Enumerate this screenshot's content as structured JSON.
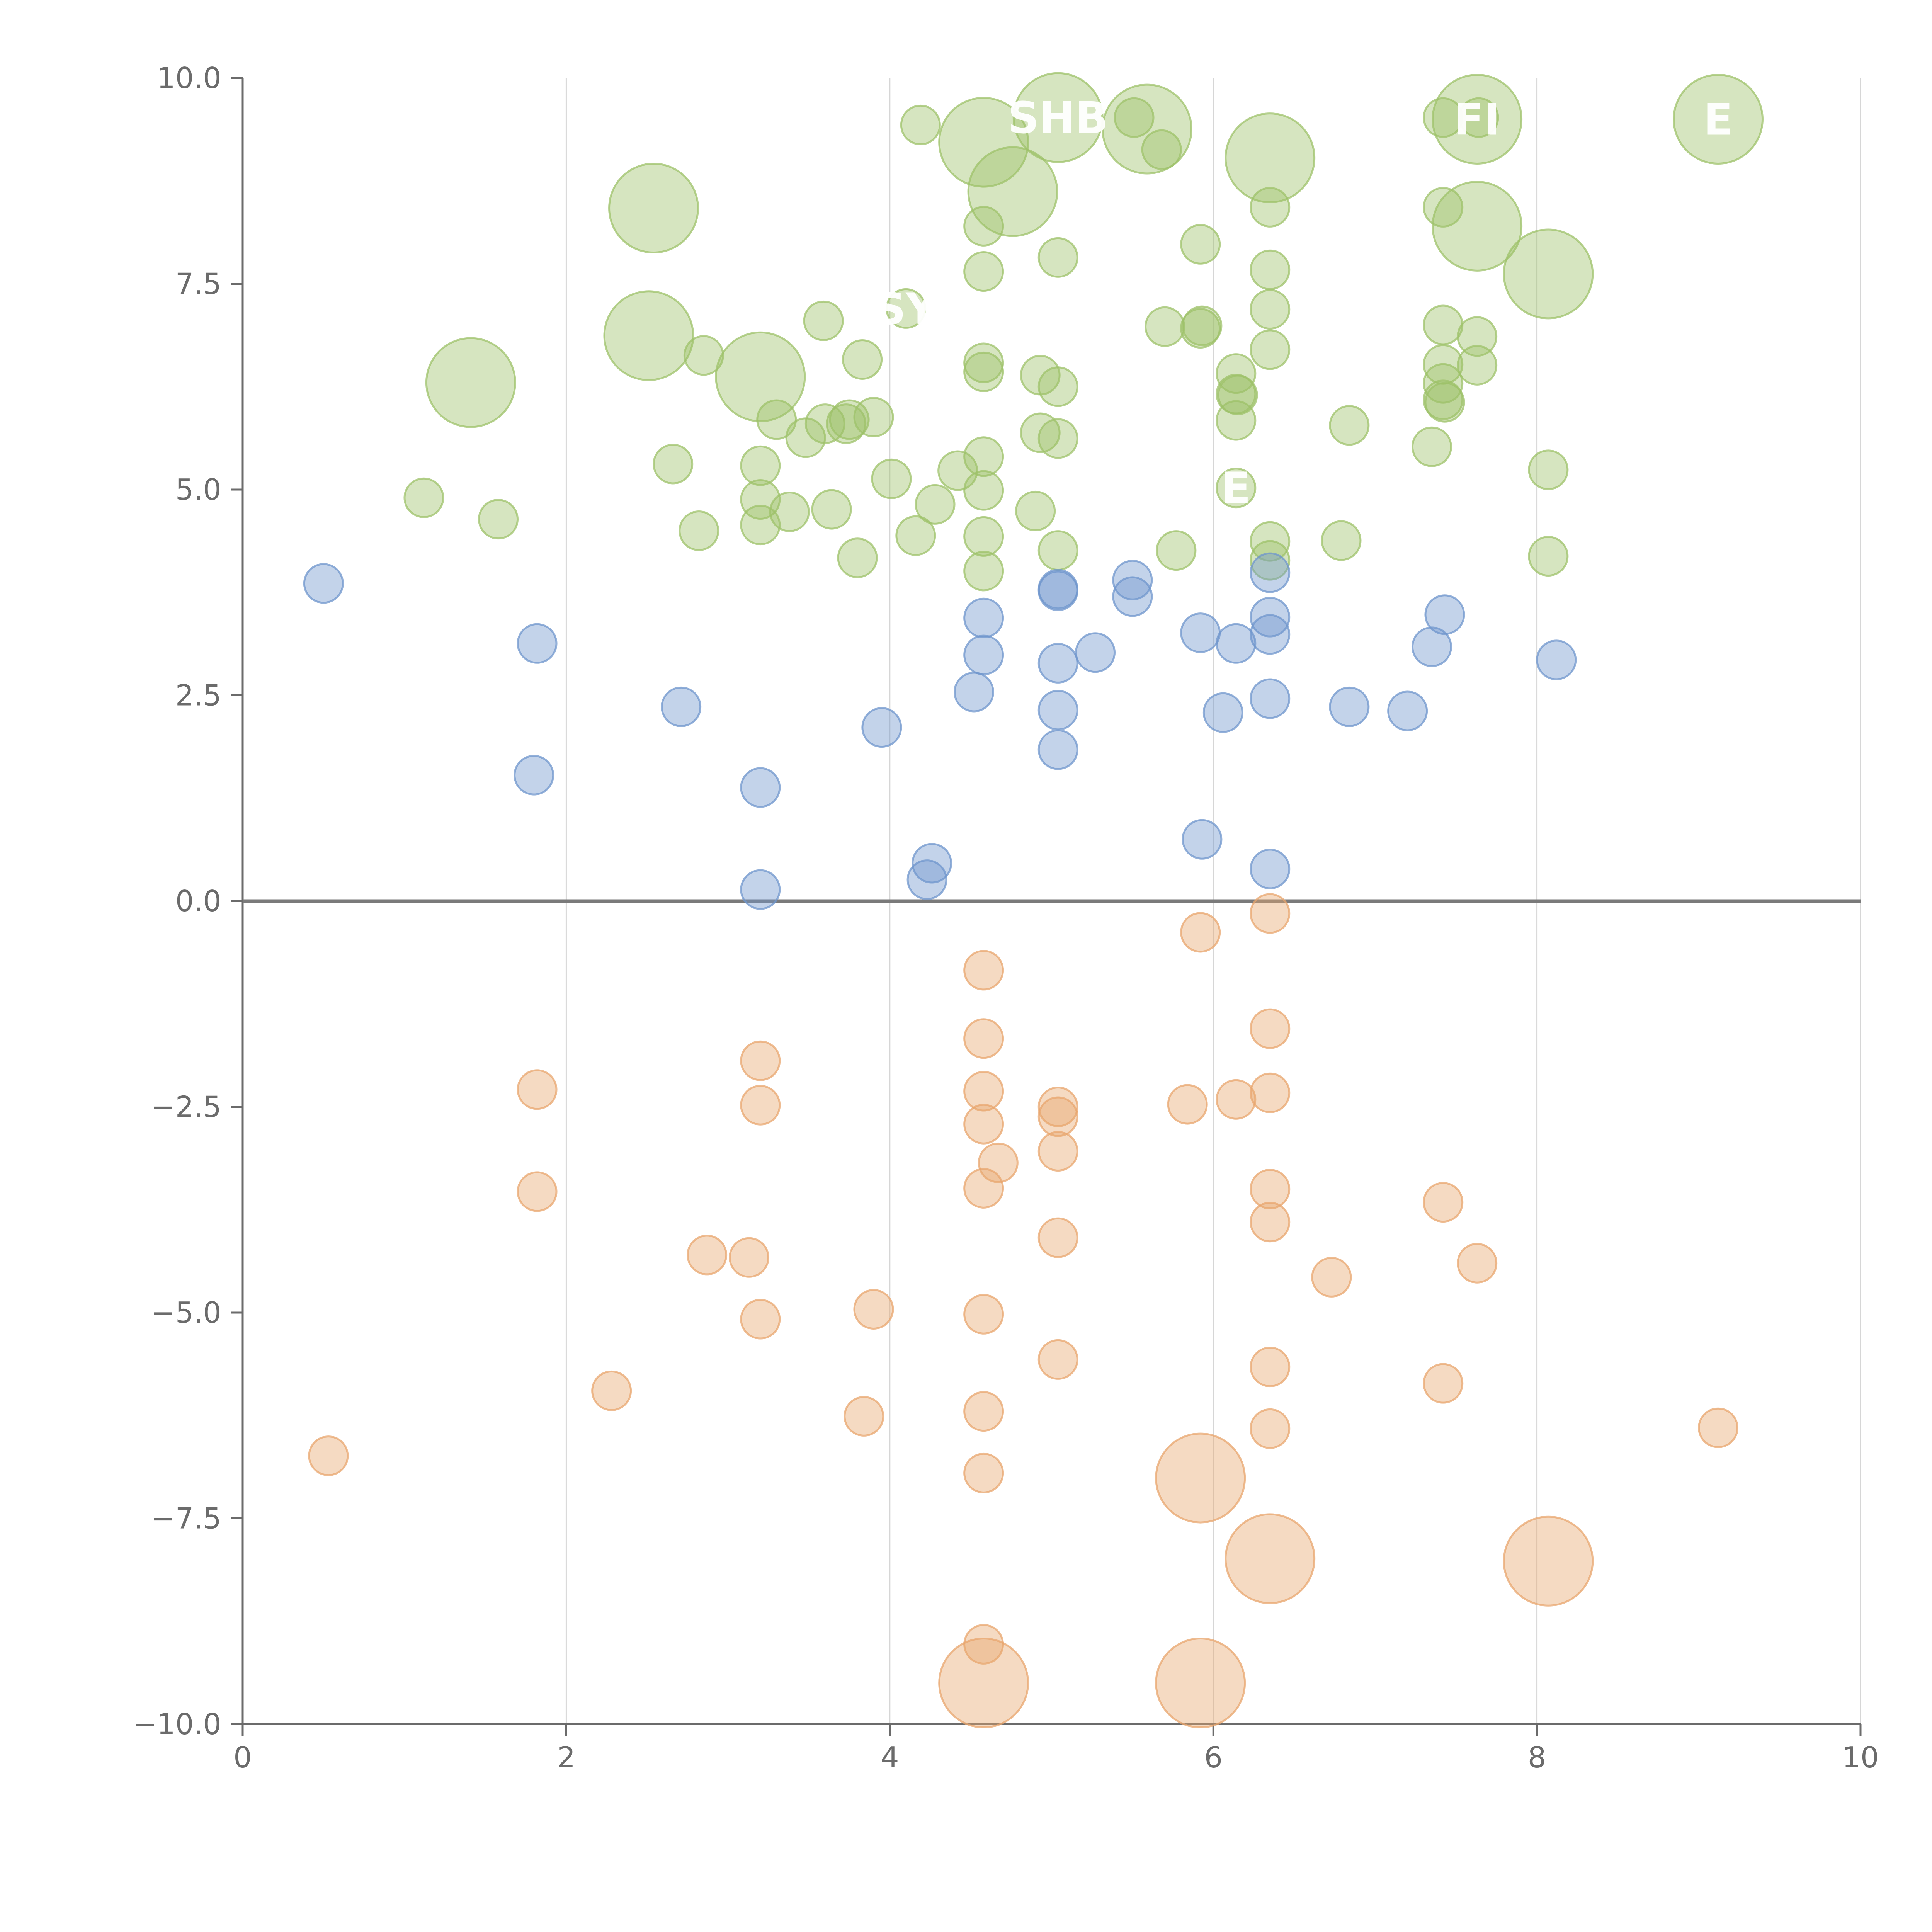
{
  "chart_data": {
    "type": "scatter",
    "title": "",
    "xlabel": "",
    "ylabel": "",
    "xlim": [
      0,
      10
    ],
    "ylim": [
      -10,
      10
    ],
    "x_ticks": [
      0,
      2,
      4,
      6,
      8,
      10
    ],
    "x_tick_labels": [
      "0",
      "2",
      "4",
      "6",
      "8",
      "10"
    ],
    "y_ticks": [
      10,
      7.5,
      5,
      2.5,
      0,
      -2.5,
      -5,
      -7.5,
      -10
    ],
    "y_tick_labels": [
      "10.0",
      "7.5",
      "5.0",
      "2.5",
      "0.0",
      "−2.5",
      "−5.0",
      "−7.5",
      "−10.0"
    ],
    "vertical_grid": true,
    "zero_line": true,
    "series": [
      {
        "name": "green",
        "color": "#9dc16a",
        "points": [
          [
            1.12,
            4.9,
            1
          ],
          [
            1.58,
            4.64,
            1
          ],
          [
            1.41,
            6.3,
            2.2
          ],
          [
            2.51,
            6.87,
            2.2
          ],
          [
            2.54,
            8.42,
            2.2
          ],
          [
            2.66,
            5.31,
            1
          ],
          [
            2.82,
            4.5,
            1
          ],
          [
            2.85,
            6.63,
            1
          ],
          [
            3.2,
            6.37,
            2.2
          ],
          [
            3.2,
            5.29,
            1
          ],
          [
            3.2,
            4.88,
            1
          ],
          [
            3.2,
            4.57,
            1
          ],
          [
            3.3,
            5.85,
            1
          ],
          [
            3.38,
            4.73,
            1
          ],
          [
            3.48,
            5.63,
            1
          ],
          [
            3.6,
            5.8,
            1
          ],
          [
            3.59,
            7.05,
            1
          ],
          [
            3.64,
            4.76,
            1
          ],
          [
            3.73,
            5.8,
            1
          ],
          [
            3.75,
            5.85,
            1
          ],
          [
            3.8,
            4.17,
            1
          ],
          [
            3.83,
            6.58,
            1
          ],
          [
            3.9,
            5.88,
            1
          ],
          [
            4.01,
            5.13,
            1
          ],
          [
            4.1,
            7.2,
            1
          ],
          [
            4.16,
            4.44,
            1
          ],
          [
            4.19,
            9.43,
            1
          ],
          [
            4.28,
            4.82,
            1
          ],
          [
            4.42,
            5.23,
            1
          ],
          [
            4.58,
            9.22,
            2.2
          ],
          [
            4.58,
            8.2,
            1
          ],
          [
            4.58,
            7.65,
            1
          ],
          [
            4.58,
            6.54,
            1
          ],
          [
            4.58,
            6.43,
            1
          ],
          [
            4.58,
            5.4,
            1
          ],
          [
            4.58,
            4.99,
            1
          ],
          [
            4.58,
            4.43,
            1
          ],
          [
            4.58,
            4.01,
            1
          ],
          [
            4.76,
            8.62,
            2.2
          ],
          [
            4.9,
            4.74,
            1
          ],
          [
            4.93,
            6.39,
            1
          ],
          [
            4.93,
            5.69,
            1
          ],
          [
            5.04,
            9.52,
            2.2
          ],
          [
            5.04,
            7.82,
            1
          ],
          [
            5.04,
            6.25,
            1
          ],
          [
            5.04,
            5.62,
            1
          ],
          [
            5.04,
            4.26,
            1
          ],
          [
            5.51,
            9.52,
            1
          ],
          [
            5.59,
            9.38,
            2.2
          ],
          [
            5.68,
            9.13,
            1
          ],
          [
            5.7,
            6.98,
            1
          ],
          [
            5.77,
            4.26,
            1
          ],
          [
            5.92,
            7.98,
            1
          ],
          [
            5.92,
            6.96,
            1
          ],
          [
            5.93,
            6.99,
            1
          ],
          [
            6.14,
            6.41,
            1
          ],
          [
            6.14,
            6.16,
            1
          ],
          [
            6.14,
            5.84,
            1
          ],
          [
            6.14,
            5.02,
            1
          ],
          [
            6.15,
            6.15,
            1
          ],
          [
            6.35,
            9.03,
            2.2
          ],
          [
            6.35,
            8.43,
            1
          ],
          [
            6.35,
            7.67,
            1
          ],
          [
            6.35,
            7.19,
            1
          ],
          [
            6.35,
            6.7,
            1
          ],
          [
            6.35,
            4.37,
            1
          ],
          [
            6.35,
            4.14,
            1
          ],
          [
            6.79,
            4.38,
            1
          ],
          [
            6.84,
            5.78,
            1
          ],
          [
            7.35,
            5.52,
            1
          ],
          [
            7.42,
            9.52,
            1
          ],
          [
            7.42,
            8.43,
            1
          ],
          [
            7.42,
            7.0,
            1
          ],
          [
            7.42,
            6.52,
            1
          ],
          [
            7.42,
            6.29,
            1
          ],
          [
            7.42,
            6.09,
            1
          ],
          [
            7.43,
            6.06,
            1
          ],
          [
            7.63,
            9.5,
            2.2
          ],
          [
            7.63,
            8.2,
            2.2
          ],
          [
            7.63,
            6.86,
            1
          ],
          [
            7.63,
            6.51,
            1
          ],
          [
            7.64,
            9.52,
            1
          ],
          [
            8.07,
            7.62,
            2.2
          ],
          [
            8.07,
            5.24,
            1
          ],
          [
            8.07,
            4.19,
            1
          ],
          [
            9.12,
            9.5,
            2.2
          ]
        ]
      },
      {
        "name": "blue",
        "color": "#6f95cc",
        "points": [
          [
            0.5,
            3.86,
            1
          ],
          [
            1.82,
            3.13,
            1
          ],
          [
            1.8,
            1.53,
            1
          ],
          [
            2.71,
            2.36,
            1
          ],
          [
            3.2,
            1.38,
            1
          ],
          [
            3.2,
            0.14,
            1
          ],
          [
            3.95,
            2.11,
            1
          ],
          [
            4.26,
            0.46,
            1
          ],
          [
            4.23,
            0.26,
            1
          ],
          [
            4.52,
            2.54,
            1
          ],
          [
            4.58,
            3.44,
            1
          ],
          [
            4.58,
            2.99,
            1
          ],
          [
            5.04,
            3.79,
            1
          ],
          [
            5.04,
            3.77,
            1
          ],
          [
            5.04,
            2.89,
            1
          ],
          [
            5.04,
            2.32,
            1
          ],
          [
            5.04,
            1.84,
            1
          ],
          [
            5.27,
            3.02,
            1
          ],
          [
            5.5,
            3.9,
            1
          ],
          [
            5.5,
            3.7,
            1
          ],
          [
            5.92,
            3.26,
            1
          ],
          [
            5.93,
            0.75,
            1
          ],
          [
            6.06,
            2.29,
            1
          ],
          [
            6.14,
            3.13,
            1
          ],
          [
            6.35,
            3.99,
            1
          ],
          [
            6.35,
            3.45,
            1
          ],
          [
            6.35,
            3.24,
            1
          ],
          [
            6.35,
            2.46,
            1
          ],
          [
            6.35,
            0.39,
            1
          ],
          [
            6.84,
            2.36,
            1
          ],
          [
            7.2,
            2.31,
            1
          ],
          [
            7.35,
            3.09,
            1
          ],
          [
            7.43,
            3.48,
            1
          ],
          [
            8.12,
            2.93,
            1
          ]
        ]
      },
      {
        "name": "orange",
        "color": "#e8a66e",
        "points": [
          [
            0.53,
            -6.74,
            1
          ],
          [
            1.82,
            -2.29,
            1
          ],
          [
            1.82,
            -3.53,
            1
          ],
          [
            2.28,
            -5.95,
            1
          ],
          [
            2.87,
            -4.3,
            1
          ],
          [
            3.13,
            -4.33,
            1
          ],
          [
            3.2,
            -1.94,
            1
          ],
          [
            3.2,
            -2.48,
            1
          ],
          [
            3.2,
            -5.08,
            1
          ],
          [
            3.84,
            -6.26,
            1
          ],
          [
            3.9,
            -4.96,
            1
          ],
          [
            4.58,
            -0.84,
            1
          ],
          [
            4.58,
            -1.67,
            1
          ],
          [
            4.58,
            -2.31,
            1
          ],
          [
            4.58,
            -2.71,
            1
          ],
          [
            4.67,
            -3.18,
            1
          ],
          [
            4.58,
            -3.49,
            1
          ],
          [
            4.58,
            -5.02,
            1
          ],
          [
            4.58,
            -6.2,
            1
          ],
          [
            4.58,
            -6.95,
            1
          ],
          [
            4.58,
            -9.03,
            1
          ],
          [
            4.58,
            -9.5,
            2.2
          ],
          [
            5.04,
            -2.5,
            1
          ],
          [
            5.04,
            -2.62,
            1
          ],
          [
            5.04,
            -3.04,
            1
          ],
          [
            5.04,
            -4.09,
            1
          ],
          [
            5.04,
            -5.57,
            1
          ],
          [
            5.84,
            -2.47,
            1
          ],
          [
            5.92,
            -0.38,
            1
          ],
          [
            5.92,
            -7.01,
            2.2
          ],
          [
            5.92,
            -9.5,
            2.2
          ],
          [
            6.14,
            -2.41,
            1
          ],
          [
            6.35,
            -0.15,
            1
          ],
          [
            6.35,
            -1.55,
            1
          ],
          [
            6.35,
            -2.33,
            1
          ],
          [
            6.35,
            -3.5,
            1
          ],
          [
            6.35,
            -3.9,
            1
          ],
          [
            6.35,
            -5.66,
            1
          ],
          [
            6.35,
            -6.41,
            1
          ],
          [
            6.35,
            -7.99,
            2.2
          ],
          [
            6.73,
            -4.57,
            1
          ],
          [
            7.42,
            -3.66,
            1
          ],
          [
            7.63,
            -4.4,
            1
          ],
          [
            7.42,
            -5.86,
            1
          ],
          [
            8.07,
            -8.02,
            2.2
          ],
          [
            9.12,
            -6.4,
            1
          ]
        ]
      }
    ],
    "annotations": [
      {
        "text": "SHB",
        "x": 5.04,
        "y": 9.52
      },
      {
        "text": "FI",
        "x": 7.63,
        "y": 9.5
      },
      {
        "text": "E",
        "x": 9.12,
        "y": 9.5
      },
      {
        "text": "SY",
        "x": 4.1,
        "y": 7.2
      },
      {
        "text": "E",
        "x": 6.14,
        "y": 5.02
      }
    ]
  }
}
